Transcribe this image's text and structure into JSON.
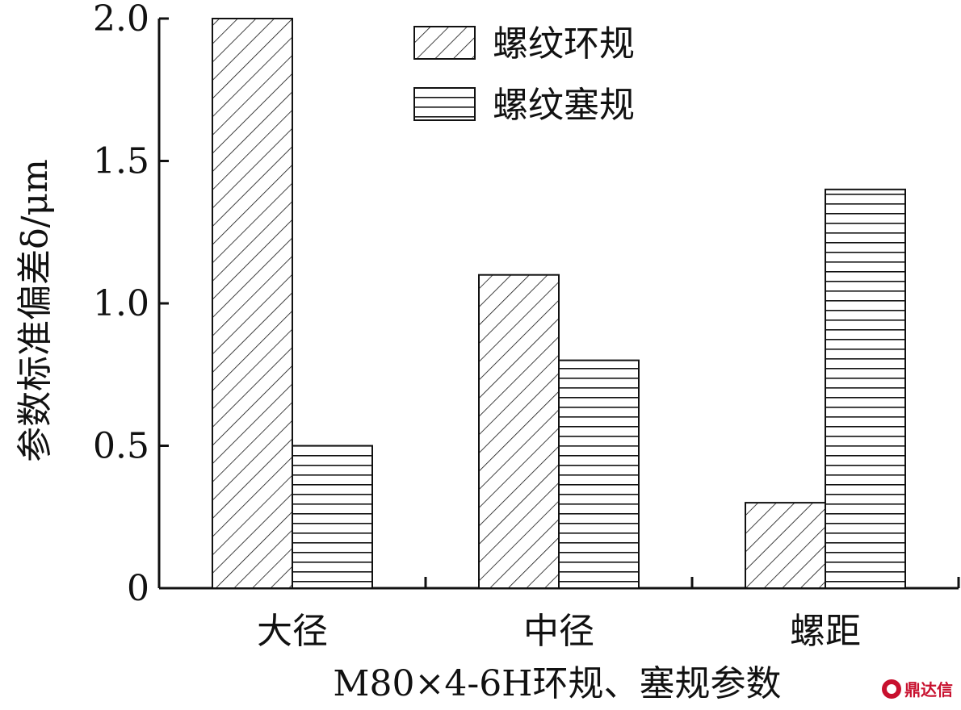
{
  "chart_data": {
    "type": "bar",
    "title": "",
    "xlabel": "M80×4-6H环规、塞规参数",
    "ylabel": "参数标准偏差δ/μm",
    "categories": [
      "大径",
      "中径",
      "螺距"
    ],
    "series": [
      {
        "name": "螺纹环规",
        "values": [
          2.0,
          1.1,
          0.3
        ],
        "pattern": "diagonal"
      },
      {
        "name": "螺纹塞规",
        "values": [
          0.5,
          0.8,
          1.4
        ],
        "pattern": "horizontal"
      }
    ],
    "ylim": [
      0,
      2.0
    ],
    "yticks": [
      0,
      0.5,
      1.0,
      1.5,
      2.0
    ],
    "ytick_labels": [
      "0",
      "0.5",
      "1.0",
      "1.5",
      "2.0"
    ],
    "legend_position": "top-center",
    "grid": false
  },
  "watermark": {
    "text": "鼎达信",
    "color": "#c8102e"
  }
}
